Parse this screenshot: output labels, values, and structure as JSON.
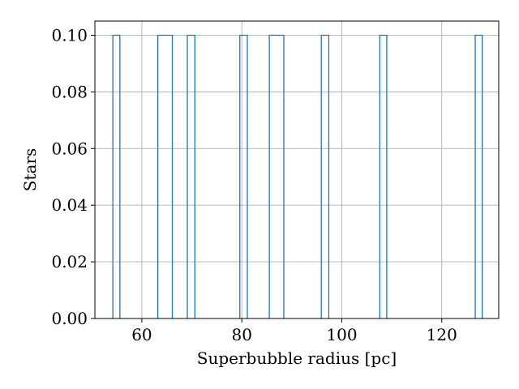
{
  "chart_data": {
    "type": "histogram",
    "title": "",
    "xlabel": "Superbubble radius [pc]",
    "ylabel": "Stars",
    "xlim": [
      50.6,
      131.4
    ],
    "ylim": [
      0.0,
      0.105
    ],
    "xticks": [
      60,
      80,
      100,
      120
    ],
    "xtick_labels": [
      "60",
      "80",
      "100",
      "120"
    ],
    "yticks": [
      0.0,
      0.02,
      0.04,
      0.06,
      0.08,
      0.1
    ],
    "ytick_labels": [
      "0.00",
      "0.02",
      "0.04",
      "0.06",
      "0.08",
      "0.10"
    ],
    "grid": true,
    "histtype": "step",
    "series_color": "#1f77b4",
    "grid_color": "#b0b0b0",
    "bins": [
      {
        "x0": 54.2,
        "x1": 55.6,
        "value": 0.1
      },
      {
        "x0": 55.6,
        "x1": 63.2,
        "value": 0.0
      },
      {
        "x0": 63.2,
        "x1": 66.1,
        "value": 0.1
      },
      {
        "x0": 66.1,
        "x1": 69.1,
        "value": 0.0
      },
      {
        "x0": 69.1,
        "x1": 70.6,
        "value": 0.1
      },
      {
        "x0": 70.6,
        "x1": 79.6,
        "value": 0.0
      },
      {
        "x0": 79.6,
        "x1": 81.1,
        "value": 0.1
      },
      {
        "x0": 81.1,
        "x1": 85.5,
        "value": 0.0
      },
      {
        "x0": 85.5,
        "x1": 88.4,
        "value": 0.1
      },
      {
        "x0": 88.4,
        "x1": 95.9,
        "value": 0.0
      },
      {
        "x0": 95.9,
        "x1": 97.4,
        "value": 0.1
      },
      {
        "x0": 97.4,
        "x1": 107.6,
        "value": 0.0
      },
      {
        "x0": 107.6,
        "x1": 109.0,
        "value": 0.1
      },
      {
        "x0": 109.0,
        "x1": 126.7,
        "value": 0.0
      },
      {
        "x0": 126.7,
        "x1": 128.1,
        "value": 0.1
      }
    ]
  }
}
